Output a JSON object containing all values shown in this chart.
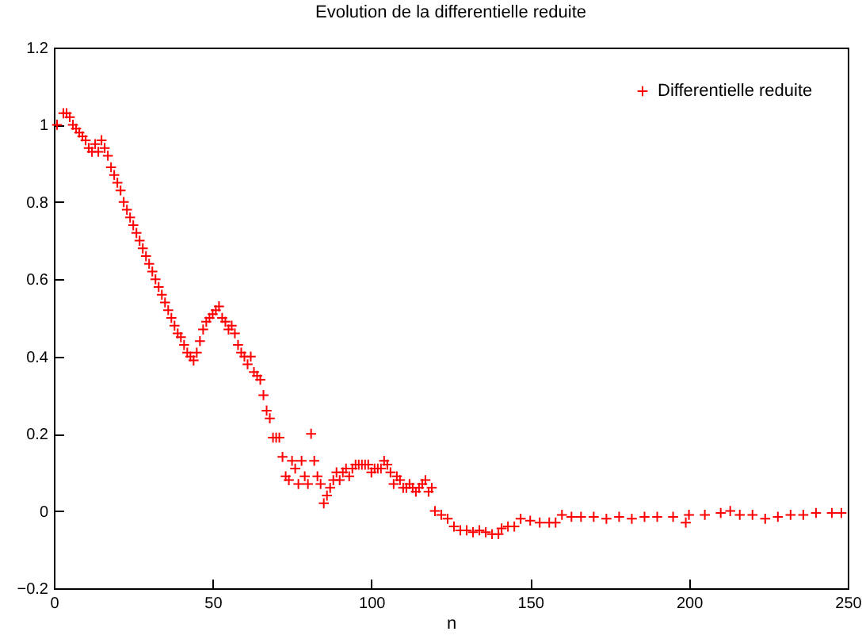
{
  "chart_data": {
    "type": "scatter",
    "title": "Evolution de la differentielle reduite",
    "xlabel": "n",
    "marker": "cross",
    "legend": "top right",
    "grid": false,
    "xlim": [
      0,
      250
    ],
    "xticks": [
      0,
      50,
      100,
      150,
      200,
      250
    ],
    "ylim": [
      -0.2,
      1.2
    ],
    "yticks": [
      -0.2,
      0,
      0.2,
      0.4,
      0.6,
      0.8,
      1,
      1.2
    ],
    "series": [
      {
        "name": "Differentielle reduite",
        "color": "#ff0000",
        "x": [
          1,
          3,
          4,
          5,
          6,
          7,
          8,
          9,
          10,
          11,
          12,
          13,
          14,
          15,
          16,
          17,
          18,
          19,
          20,
          21,
          22,
          23,
          24,
          25,
          26,
          27,
          28,
          29,
          30,
          31,
          32,
          33,
          34,
          35,
          36,
          37,
          38,
          39,
          40,
          41,
          42,
          43,
          44,
          45,
          46,
          47,
          48,
          49,
          50,
          51,
          52,
          53,
          54,
          55,
          56,
          57,
          58,
          59,
          60,
          61,
          62,
          63,
          64,
          65,
          66,
          67,
          68,
          69,
          70,
          71,
          72,
          73,
          74,
          75,
          76,
          77,
          78,
          79,
          80,
          81,
          82,
          83,
          84,
          85,
          86,
          87,
          88,
          89,
          90,
          91,
          92,
          93,
          94,
          95,
          96,
          97,
          98,
          99,
          100,
          101,
          102,
          103,
          104,
          105,
          106,
          107,
          108,
          109,
          110,
          111,
          112,
          113,
          114,
          115,
          116,
          117,
          118,
          119,
          120,
          122,
          124,
          126,
          128,
          130,
          132,
          134,
          136,
          138,
          140,
          141,
          143,
          145,
          147,
          150,
          153,
          156,
          158,
          160,
          163,
          166,
          170,
          174,
          178,
          182,
          186,
          190,
          195,
          199,
          200,
          205,
          210,
          213,
          216,
          220,
          224,
          228,
          232,
          236,
          240,
          245,
          248
        ],
        "values": [
          1.0,
          1.03,
          1.03,
          1.02,
          1.0,
          0.99,
          0.98,
          0.97,
          0.96,
          0.94,
          0.93,
          0.95,
          0.93,
          0.96,
          0.94,
          0.92,
          0.89,
          0.87,
          0.85,
          0.83,
          0.8,
          0.78,
          0.76,
          0.74,
          0.72,
          0.7,
          0.68,
          0.66,
          0.64,
          0.62,
          0.6,
          0.58,
          0.56,
          0.54,
          0.52,
          0.5,
          0.48,
          0.46,
          0.45,
          0.43,
          0.41,
          0.4,
          0.39,
          0.41,
          0.44,
          0.47,
          0.49,
          0.5,
          0.51,
          0.52,
          0.53,
          0.5,
          0.49,
          0.47,
          0.48,
          0.46,
          0.43,
          0.41,
          0.4,
          0.38,
          0.4,
          0.36,
          0.35,
          0.34,
          0.3,
          0.26,
          0.24,
          0.19,
          0.19,
          0.19,
          0.14,
          0.09,
          0.08,
          0.13,
          0.11,
          0.07,
          0.13,
          0.09,
          0.07,
          0.2,
          0.13,
          0.09,
          0.07,
          0.02,
          0.04,
          0.06,
          0.08,
          0.1,
          0.08,
          0.1,
          0.11,
          0.09,
          0.11,
          0.12,
          0.12,
          0.12,
          0.12,
          0.12,
          0.1,
          0.11,
          0.11,
          0.11,
          0.13,
          0.12,
          0.1,
          0.07,
          0.09,
          0.08,
          0.06,
          0.06,
          0.07,
          0.06,
          0.05,
          0.06,
          0.07,
          0.08,
          0.05,
          0.06,
          0.0,
          -0.01,
          -0.02,
          -0.04,
          -0.05,
          -0.05,
          -0.055,
          -0.05,
          -0.055,
          -0.06,
          -0.06,
          -0.045,
          -0.04,
          -0.04,
          -0.02,
          -0.025,
          -0.03,
          -0.03,
          -0.03,
          -0.01,
          -0.015,
          -0.015,
          -0.015,
          -0.02,
          -0.015,
          -0.02,
          -0.015,
          -0.015,
          -0.015,
          -0.03,
          -0.01,
          -0.01,
          -0.005,
          0.0,
          -0.01,
          -0.01,
          -0.02,
          -0.015,
          -0.01,
          -0.01,
          -0.005,
          -0.005,
          -0.005
        ]
      }
    ]
  }
}
